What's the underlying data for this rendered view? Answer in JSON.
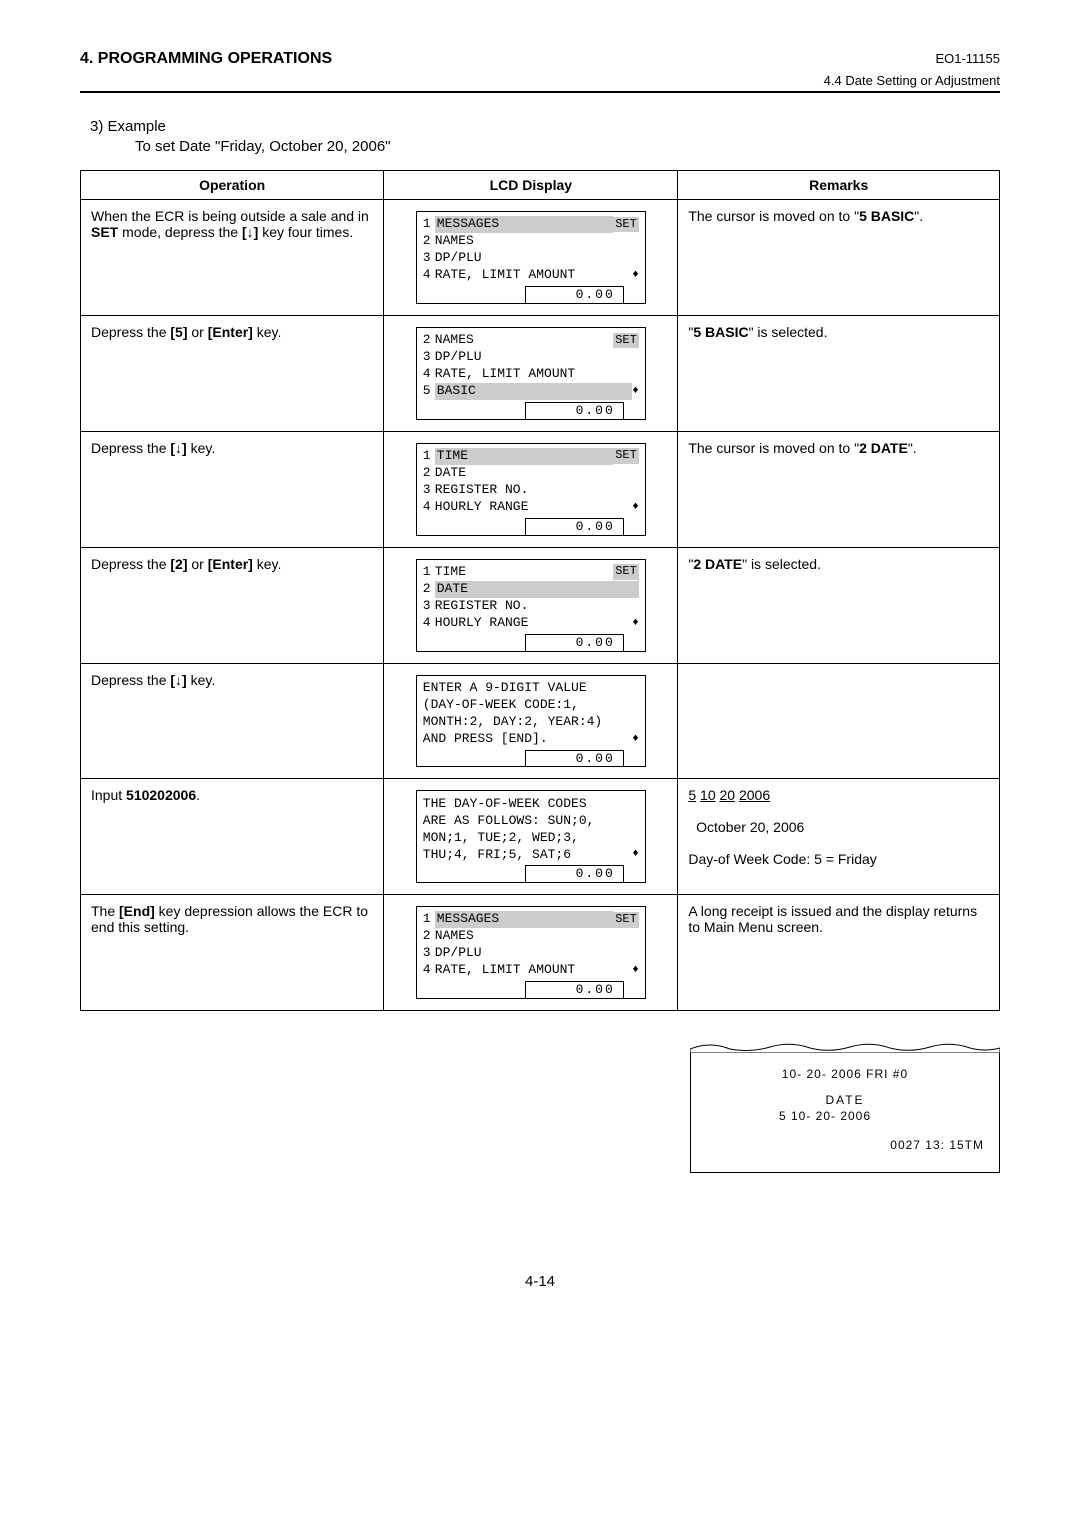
{
  "header": {
    "left": "4. PROGRAMMING OPERATIONS",
    "right": "EO1-11155",
    "sub": "4.4 Date Setting or Adjustment"
  },
  "example": {
    "num": "3)   Example",
    "desc": "To set Date \"Friday, October 20, 2006\""
  },
  "table": {
    "headers": {
      "op": "Operation",
      "lcd": "LCD Display",
      "rem": "Remarks"
    },
    "lcd_set_label": "SET",
    "lcd_value": "0.00",
    "rows": [
      {
        "op_html": "When the ECR is being outside a sale and in <b>SET</b> mode, depress the <b>[↓]</b> key four times.",
        "lcd": {
          "type": "menu",
          "show_set": true,
          "highlight": 0,
          "items": [
            [
              "1",
              "MESSAGES"
            ],
            [
              "2",
              "NAMES"
            ],
            [
              "3",
              "DP/PLU"
            ],
            [
              "4",
              "RATE, LIMIT AMOUNT"
            ]
          ],
          "arrows_on": 3
        },
        "rem_html": "The cursor is moved on to \"<b>5 BASIC</b>\".",
        "rem_small": true
      },
      {
        "op_html": "Depress the <b>[5]</b> or <b>[Enter]</b> key.",
        "lcd": {
          "type": "menu",
          "show_set": true,
          "highlight": 3,
          "items": [
            [
              "2",
              "NAMES"
            ],
            [
              "3",
              "DP/PLU"
            ],
            [
              "4",
              "RATE, LIMIT AMOUNT"
            ],
            [
              "5",
              "BASIC"
            ]
          ],
          "arrows_on": 3
        },
        "rem_html": "\"<b>5 BASIC</b>\" is selected.",
        "rem_small": true
      },
      {
        "op_html": "Depress the <b>[↓]</b> key.",
        "lcd": {
          "type": "menu",
          "show_set": true,
          "set_hl": true,
          "highlight": 0,
          "items": [
            [
              "1",
              "TIME"
            ],
            [
              "2",
              "DATE"
            ],
            [
              "3",
              "REGISTER NO."
            ],
            [
              "4",
              "HOURLY RANGE"
            ]
          ],
          "arrows_on": 3
        },
        "rem_html": "The cursor is moved on to \"<b>2 DATE</b>\".",
        "rem_small": true
      },
      {
        "op_html": "Depress the <b>[2]</b> or <b>[Enter]</b> key.",
        "lcd": {
          "type": "menu",
          "show_set": true,
          "highlight": 1,
          "items": [
            [
              "1",
              "TIME"
            ],
            [
              "2",
              "DATE"
            ],
            [
              "3",
              "REGISTER NO."
            ],
            [
              "4",
              "HOURLY RANGE"
            ]
          ],
          "arrows_on": 3
        },
        "rem_html": "\"<b>2 DATE</b>\" is selected.",
        "rem_small": true
      },
      {
        "op_html": "Depress the <b>[↓]</b> key.",
        "lcd": {
          "type": "msg",
          "lines": [
            "ENTER A 9-DIGIT VALUE",
            "(DAY-OF-WEEK CODE:1,",
            "MONTH:2, DAY:2, YEAR:4)",
            "AND PRESS [END]."
          ],
          "arrows_on": 3
        },
        "rem_html": ""
      },
      {
        "op_html": "Input <b>510202006</b>.",
        "lcd": {
          "type": "msg",
          "lines": [
            "THE DAY-OF-WEEK CODES",
            "ARE AS FOLLOWS: SUN;0,",
            "MON;1, TUE;2, WED;3,",
            "THU;4, FRI;5, SAT;6"
          ],
          "arrows_on": 3
        },
        "rem_html": "<span class='u'>5</span> <span class='u'>10</span> <span class='u'>20</span> <span class='u'>2006</span><br><br>&nbsp;&nbsp;October 20, 2006<br><br>Day-of Week Code: 5 = Friday"
      },
      {
        "op_html": "The <b>[End]</b> key depression allows the ECR to end this setting.",
        "lcd": {
          "type": "menu",
          "show_set": true,
          "highlight": 0,
          "items": [
            [
              "1",
              "MESSAGES"
            ],
            [
              "2",
              "NAMES"
            ],
            [
              "3",
              "DP/PLU"
            ],
            [
              "4",
              "RATE, LIMIT AMOUNT"
            ]
          ],
          "arrows_on": 3
        },
        "rem_html": "A long receipt is issued and the display returns to Main Menu screen.",
        "rem_small": true
      }
    ]
  },
  "receipt": {
    "line1": "10- 20- 2006  FRI     #0",
    "line2": "DATE",
    "line3": "5  10- 20- 2006",
    "line4": "0027  13: 15TM"
  },
  "page_num": "4-14"
}
